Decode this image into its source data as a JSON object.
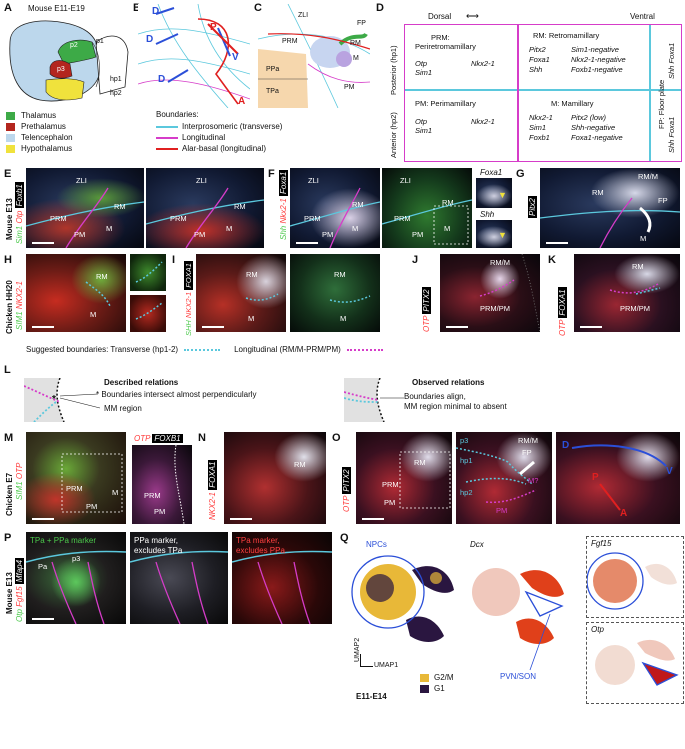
{
  "panels": {
    "A": {
      "letter": "A",
      "title": "Mouse E11-E19",
      "regions": [
        "p2",
        "p1",
        "p3",
        "hp1",
        "hp2"
      ],
      "legend": [
        {
          "name": "Thalamus",
          "color": "#3daa47"
        },
        {
          "name": "Prethalamus",
          "color": "#b3261e"
        },
        {
          "name": "Telencephalon",
          "color": "#bcd7ec"
        },
        {
          "name": "Hypothalamus",
          "color": "#f0e23c"
        }
      ]
    },
    "B": {
      "letter": "B",
      "arrows": [
        "D",
        "D",
        "D",
        "V",
        "P",
        "A"
      ]
    },
    "C": {
      "letter": "C",
      "labels": [
        "ZLI",
        "FP",
        "PRM",
        "RM",
        "M",
        "PPa",
        "TPa",
        "PM"
      ]
    },
    "boundaries": {
      "title": "Boundaries:",
      "items": [
        {
          "name": "Interprosomeric (transverse)",
          "color": "#5bc8dd"
        },
        {
          "name": "Longitudinal",
          "color": "#d63cc9"
        },
        {
          "name": "Alar-basal (longitudinal)",
          "color": "#e02020"
        }
      ]
    },
    "D": {
      "letter": "D",
      "dorsal": "Dorsal",
      "ventral": "Ventral",
      "posterior": "Posterior (hp1)",
      "anterior": "Anterior (hp2)",
      "prm": {
        "title": "PRM:",
        "title2": "Periretromamillary",
        "genes": [
          "Otp",
          "Sim1"
        ],
        "genes2": [
          "Nkx2-1"
        ]
      },
      "rm": {
        "title": "RM: Retromamillary",
        "genes": [
          "Pitx2",
          "Foxa1",
          "Shh"
        ],
        "genes2": [
          "Sim1-negative",
          "Nkx2-1-negative",
          "Foxb1-negative"
        ]
      },
      "pm": {
        "title": "PM: Perimamillary",
        "genes": [
          "Otp",
          "Sim1"
        ],
        "genes2": [
          "Nkx2-1"
        ]
      },
      "m": {
        "title": "M: Mamillary",
        "genes": [
          "Nkx2-1",
          "Sim1",
          "Foxb1"
        ],
        "genes2": [
          "Pitx2 (low)",
          "Shh-negative",
          "Foxa1-negative"
        ]
      },
      "fp1": "FP: Floor plate",
      "fp2": "Shh Foxa1",
      "fp3": "Shh Foxa1"
    },
    "E": {
      "letter": "E",
      "side": "Mouse E13",
      "genes": [
        "Sim1",
        "Otp",
        "Foxb1"
      ],
      "labels": [
        "ZLI",
        "RM",
        "PRM",
        "PM",
        "M"
      ]
    },
    "F": {
      "letter": "F",
      "genes": [
        "Shh",
        "Nkx2-1",
        "Foxa1"
      ],
      "labels": [
        "ZLI",
        "RM",
        "PRM",
        "PM",
        "M"
      ],
      "insets": [
        "Foxa1",
        "Shh"
      ]
    },
    "G": {
      "letter": "G",
      "gene": "Pitx2",
      "labels": [
        "RM/M",
        "FP",
        "RM",
        "M"
      ]
    },
    "H": {
      "letter": "H",
      "side": "Chicken HH20",
      "genes": [
        "SIM1",
        "NKX2-1"
      ],
      "labels": [
        "RM",
        "M"
      ]
    },
    "I": {
      "letter": "I",
      "genes": [
        "SHH",
        "NKX2-1",
        "FOXA1"
      ],
      "labels": [
        "RM",
        "M",
        "RM",
        "M"
      ]
    },
    "J": {
      "letter": "J",
      "genes": [
        "OTP",
        "PITX2"
      ],
      "labels": [
        "RM/M",
        "PRM/PM"
      ]
    },
    "K": {
      "letter": "K",
      "genes": [
        "OTP",
        "FOXA1"
      ],
      "labels": [
        "RM",
        "PRM/PM"
      ]
    },
    "suggested": {
      "text": "Suggested boundaries: Transverse (hp1-2)",
      "text2": "Longitudinal (RM/M-PRM/PM)"
    },
    "L": {
      "letter": "L",
      "described": "Described relations",
      "d1": "Boundaries intersect almost perpendicularly",
      "d2": "MM region",
      "observed": "Observed relations",
      "o1": "Boundaries align,",
      "o2": "MM region minimal to absent"
    },
    "M": {
      "letter": "M",
      "side": "Chicken E7",
      "genes": [
        "SIM1",
        "OTP"
      ],
      "labels": [
        "PRM",
        "M",
        "PM"
      ],
      "inset_genes": [
        "OTP",
        "FOXB1"
      ],
      "inset_labels": [
        "PRM",
        "PM"
      ]
    },
    "N": {
      "letter": "N",
      "genes": [
        "NKX2-1",
        "FOXA1"
      ],
      "labels": [
        "RM"
      ]
    },
    "O": {
      "letter": "O",
      "genes": [
        "OTP",
        "PITX2"
      ],
      "labels": [
        "RM",
        "PRM",
        "PM"
      ],
      "mid": [
        "p3",
        "RM/M",
        "FP",
        "hp1",
        "M?",
        "hp2",
        "PM"
      ],
      "arrows": [
        "D",
        "V",
        "P",
        "A"
      ]
    },
    "P": {
      "letter": "P",
      "side": "Mouse E13",
      "genes": [
        "Otp",
        "Fgf15",
        "Mfap4"
      ],
      "labels": [
        "Pa",
        "p3"
      ],
      "t1": "TPa + PPa marker",
      "t2": "PPa marker,",
      "t2b": "excludes TPa",
      "t3": "TPa marker,",
      "t3b": "excludes PPa"
    },
    "Q": {
      "letter": "Q",
      "npcs": "NPCs",
      "dcx": "Dcx",
      "pvn": "PVN/SON",
      "umap1": "UMAP1",
      "umap2": "UMAP2",
      "age": "E11-E14",
      "legend": [
        {
          "name": "G2/M",
          "color": "#e8b838"
        },
        {
          "name": "G1",
          "color": "#2a1640"
        }
      ],
      "insets": [
        "Fgf15",
        "Otp"
      ]
    }
  }
}
